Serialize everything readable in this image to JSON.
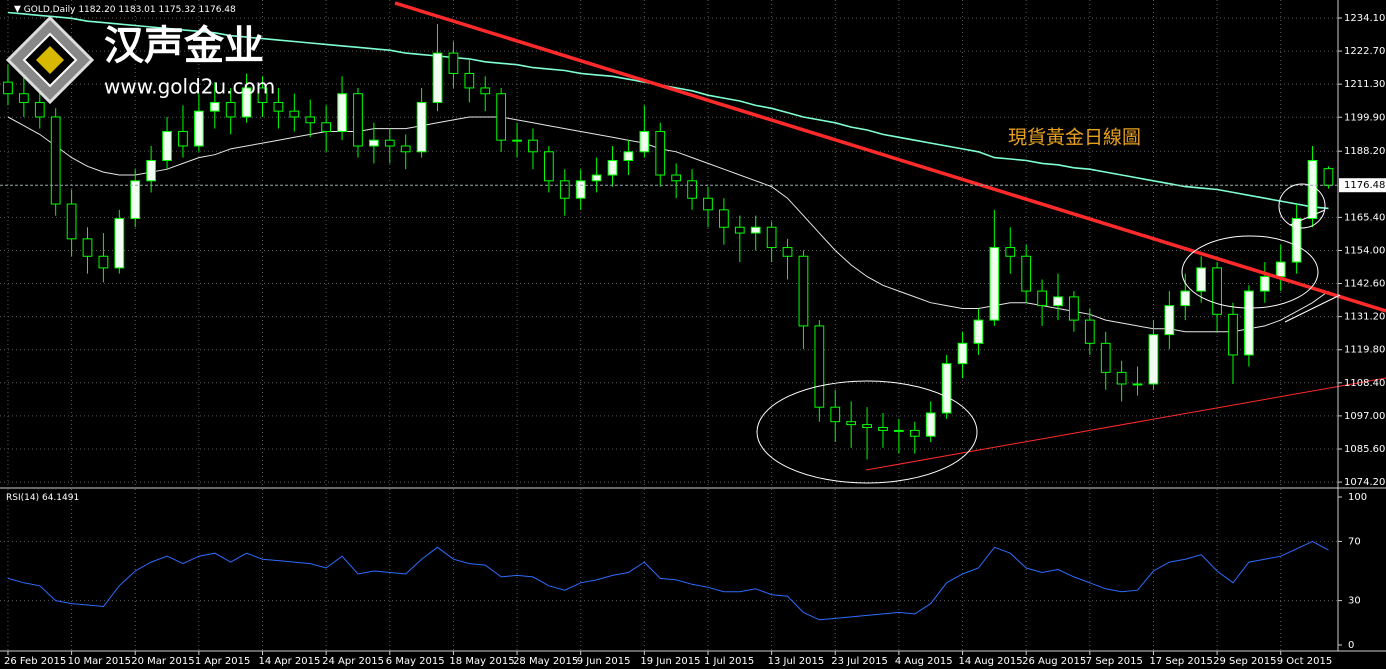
{
  "chart_data": [
    {
      "type": "candlestick",
      "symbol": "GOLD,Daily",
      "ohlc_label": "1182.20 1183.01 1175.32 1176.48",
      "logo_title": "汉声金业",
      "logo_url": "www.gold2u.com",
      "annotation": "現貨黃金日線圖",
      "up_color": "#f0fff0",
      "down_color": "#000000",
      "wick_color": "#00ff00",
      "candles": [
        [
          1212,
          1218,
          1204,
          1208
        ],
        [
          1208,
          1214,
          1200,
          1205
        ],
        [
          1205,
          1210,
          1196,
          1200
        ],
        [
          1200,
          1203,
          1166,
          1170
        ],
        [
          1170,
          1175,
          1152,
          1158
        ],
        [
          1158,
          1162,
          1146,
          1152
        ],
        [
          1152,
          1160,
          1143,
          1148
        ],
        [
          1148,
          1168,
          1146,
          1165
        ],
        [
          1165,
          1182,
          1162,
          1178
        ],
        [
          1178,
          1190,
          1174,
          1185
        ],
        [
          1185,
          1200,
          1182,
          1195
        ],
        [
          1195,
          1204,
          1186,
          1190
        ],
        [
          1190,
          1208,
          1188,
          1202
        ],
        [
          1202,
          1212,
          1196,
          1205
        ],
        [
          1205,
          1210,
          1194,
          1200
        ],
        [
          1200,
          1215,
          1198,
          1210
        ],
        [
          1210,
          1214,
          1200,
          1205
        ],
        [
          1205,
          1210,
          1196,
          1202
        ],
        [
          1202,
          1208,
          1195,
          1200
        ],
        [
          1200,
          1206,
          1193,
          1198
        ],
        [
          1198,
          1204,
          1188,
          1195
        ],
        [
          1195,
          1214,
          1192,
          1208
        ],
        [
          1208,
          1210,
          1186,
          1190
        ],
        [
          1190,
          1198,
          1184,
          1192
        ],
        [
          1192,
          1196,
          1184,
          1190
        ],
        [
          1190,
          1194,
          1182,
          1188
        ],
        [
          1188,
          1210,
          1186,
          1205
        ],
        [
          1205,
          1232,
          1202,
          1222
        ],
        [
          1222,
          1226,
          1210,
          1215
        ],
        [
          1215,
          1220,
          1205,
          1210
        ],
        [
          1210,
          1214,
          1202,
          1208
        ],
        [
          1208,
          1210,
          1188,
          1192
        ],
        [
          1192,
          1198,
          1186,
          1192
        ],
        [
          1192,
          1196,
          1182,
          1188
        ],
        [
          1188,
          1190,
          1174,
          1178
        ],
        [
          1178,
          1182,
          1166,
          1172
        ],
        [
          1172,
          1182,
          1168,
          1178
        ],
        [
          1178,
          1186,
          1174,
          1180
        ],
        [
          1180,
          1190,
          1176,
          1185
        ],
        [
          1185,
          1192,
          1180,
          1188
        ],
        [
          1188,
          1204,
          1186,
          1195
        ],
        [
          1195,
          1198,
          1176,
          1180
        ],
        [
          1180,
          1184,
          1172,
          1178
        ],
        [
          1178,
          1182,
          1168,
          1172
        ],
        [
          1172,
          1176,
          1162,
          1168
        ],
        [
          1168,
          1172,
          1156,
          1162
        ],
        [
          1162,
          1166,
          1150,
          1160
        ],
        [
          1160,
          1166,
          1154,
          1162
        ],
        [
          1162,
          1164,
          1150,
          1155
        ],
        [
          1155,
          1158,
          1144,
          1152
        ],
        [
          1152,
          1154,
          1120,
          1128
        ],
        [
          1128,
          1130,
          1095,
          1100
        ],
        [
          1100,
          1106,
          1088,
          1095
        ],
        [
          1095,
          1102,
          1086,
          1094
        ],
        [
          1094,
          1100,
          1082,
          1093
        ],
        [
          1093,
          1098,
          1086,
          1092
        ],
        [
          1092,
          1096,
          1084,
          1092
        ],
        [
          1092,
          1095,
          1084,
          1090
        ],
        [
          1090,
          1102,
          1088,
          1098
        ],
        [
          1098,
          1118,
          1096,
          1115
        ],
        [
          1115,
          1126,
          1110,
          1122
        ],
        [
          1122,
          1134,
          1118,
          1130
        ],
        [
          1130,
          1168,
          1128,
          1155
        ],
        [
          1155,
          1162,
          1146,
          1152
        ],
        [
          1152,
          1156,
          1136,
          1140
        ],
        [
          1140,
          1144,
          1128,
          1135
        ],
        [
          1135,
          1146,
          1130,
          1138
        ],
        [
          1138,
          1140,
          1126,
          1130
        ],
        [
          1130,
          1134,
          1118,
          1122
        ],
        [
          1122,
          1126,
          1106,
          1112
        ],
        [
          1112,
          1116,
          1102,
          1108
        ],
        [
          1108,
          1114,
          1104,
          1108
        ],
        [
          1108,
          1130,
          1106,
          1125
        ],
        [
          1125,
          1140,
          1120,
          1135
        ],
        [
          1135,
          1146,
          1130,
          1140
        ],
        [
          1140,
          1152,
          1136,
          1148
        ],
        [
          1148,
          1150,
          1126,
          1132
        ],
        [
          1132,
          1136,
          1108,
          1118
        ],
        [
          1118,
          1142,
          1114,
          1140
        ],
        [
          1140,
          1150,
          1136,
          1145
        ],
        [
          1145,
          1156,
          1140,
          1150
        ],
        [
          1150,
          1170,
          1146,
          1165
        ],
        [
          1165,
          1190,
          1162,
          1185
        ],
        [
          1182.2,
          1183.01,
          1175.32,
          1176.48
        ]
      ],
      "overlays": [
        {
          "color": "#7fffd4",
          "values": [
            1236,
            1235.5,
            1235,
            1234.5,
            1234,
            1233,
            1232.5,
            1232,
            1231.5,
            1231,
            1230.5,
            1230,
            1229.5,
            1229,
            1228,
            1227.5,
            1227,
            1226.5,
            1226,
            1225.5,
            1225,
            1224.5,
            1224,
            1223.5,
            1223,
            1222,
            1221.5,
            1221,
            1220.5,
            1220,
            1219,
            1218.5,
            1218,
            1217,
            1216.5,
            1216,
            1215,
            1214.5,
            1214,
            1213,
            1212,
            1211,
            1210,
            1209,
            1207.5,
            1206.5,
            1205.5,
            1204,
            1203,
            1201.5,
            1200,
            1199,
            1198,
            1196.5,
            1195.5,
            1194,
            1193,
            1192,
            1191,
            1190,
            1189,
            1188,
            1186,
            1185.5,
            1185,
            1184,
            1183.5,
            1182.5,
            1182,
            1181,
            1180,
            1179,
            1178,
            1177,
            1176,
            1175.5,
            1175,
            1174,
            1173,
            1172,
            1171,
            1170,
            1169,
            1168.5
          ]
        },
        {
          "color": "#e6e6e6",
          "values": [
            1200,
            1197,
            1194,
            1190,
            1186,
            1183,
            1181,
            1180,
            1180,
            1181,
            1182,
            1184,
            1186,
            1187,
            1189,
            1190,
            1191,
            1192,
            1193,
            1194,
            1195,
            1195,
            1195,
            1196,
            1196,
            1196,
            1197,
            1198,
            1199,
            1200,
            1200,
            1200,
            1199,
            1198,
            1197,
            1196,
            1195,
            1194,
            1193,
            1192,
            1191,
            1189,
            1188,
            1186,
            1184,
            1182,
            1180,
            1178,
            1176,
            1172,
            1166,
            1160,
            1154,
            1149,
            1145,
            1142,
            1140,
            1138,
            1136,
            1135,
            1134,
            1134,
            1135,
            1136,
            1136,
            1135,
            1134,
            1133,
            1132,
            1130,
            1129,
            1128,
            1127,
            1127,
            1126,
            1126,
            1126,
            1126,
            1127,
            1128,
            1130,
            1133,
            1136,
            1140
          ]
        }
      ],
      "last_price": 1176.48,
      "xlim": [
        -0.5,
        83.6
      ],
      "xticks": [
        {
          "value": 0,
          "label": "26 Feb 2015"
        },
        {
          "value": 4,
          "label": "10 Mar 2015"
        },
        {
          "value": 8,
          "label": "20 Mar 2015"
        },
        {
          "value": 12,
          "label": "1 Apr 2015"
        },
        {
          "value": 16,
          "label": "14 Apr 2015"
        },
        {
          "value": 20,
          "label": "24 Apr 2015"
        },
        {
          "value": 24,
          "label": "6 May 2015"
        },
        {
          "value": 28,
          "label": "18 May 2015"
        },
        {
          "value": 32,
          "label": "28 May 2015"
        },
        {
          "value": 36,
          "label": "9 Jun 2015"
        },
        {
          "value": 40,
          "label": "19 Jun 2015"
        },
        {
          "value": 44,
          "label": "1 Jul 2015"
        },
        {
          "value": 48,
          "label": "13 Jul 2015"
        },
        {
          "value": 52,
          "label": "23 Jul 2015"
        },
        {
          "value": 56,
          "label": "4 Aug 2015"
        },
        {
          "value": 60,
          "label": "14 Aug 2015"
        },
        {
          "value": 64,
          "label": "26 Aug 2015"
        },
        {
          "value": 68,
          "label": "7 Sep 2015"
        },
        {
          "value": 72,
          "label": "17 Sep 2015"
        },
        {
          "value": 76,
          "label": "29 Sep 2015"
        },
        {
          "value": 80,
          "label": "9 Oct 2015"
        }
      ],
      "ylim": [
        1072.5,
        1240.3
      ],
      "yticks": [
        {
          "value": 1234.1,
          "label": "1234.10"
        },
        {
          "value": 1222.7,
          "label": "1222.70"
        },
        {
          "value": 1211.3,
          "label": "1211.30"
        },
        {
          "value": 1199.9,
          "label": "1199.90"
        },
        {
          "value": 1188.2,
          "label": "1188.20"
        },
        {
          "value": 1165.4,
          "label": "1165.40"
        },
        {
          "value": 1154,
          "label": "1154.00"
        },
        {
          "value": 1142.6,
          "label": "1142.60"
        },
        {
          "value": 1131.2,
          "label": "1131.20"
        },
        {
          "value": 1119.8,
          "label": "1119.80"
        },
        {
          "value": 1108.4,
          "label": "1108.40"
        },
        {
          "value": 1097,
          "label": "1097.00"
        },
        {
          "value": 1085.6,
          "label": "1085.60"
        },
        {
          "value": 1074.2,
          "label": "1074.20"
        }
      ],
      "grid": true
    },
    {
      "type": "line",
      "title": "RSI(14)",
      "color": "#2f6bff",
      "values": [
        45,
        42,
        40,
        30,
        28,
        27,
        26,
        40,
        50,
        56,
        60,
        55,
        60,
        62,
        56,
        62,
        58,
        57,
        56,
        55,
        52,
        60,
        48,
        50,
        49,
        48,
        58,
        66,
        58,
        55,
        54,
        46,
        47,
        46,
        40,
        37,
        42,
        44,
        47,
        49,
        56,
        45,
        44,
        41,
        39,
        36,
        36,
        38,
        34,
        33,
        22,
        17,
        18,
        19,
        20,
        21,
        22,
        21,
        28,
        42,
        48,
        52,
        66,
        62,
        52,
        49,
        51,
        46,
        42,
        38,
        36,
        37,
        50,
        56,
        58,
        61,
        50,
        42,
        56,
        58,
        60,
        65,
        70,
        64.1491
      ],
      "ylim": [
        0,
        100
      ],
      "yticks": [
        100,
        70,
        30,
        0
      ],
      "grid": true
    }
  ]
}
